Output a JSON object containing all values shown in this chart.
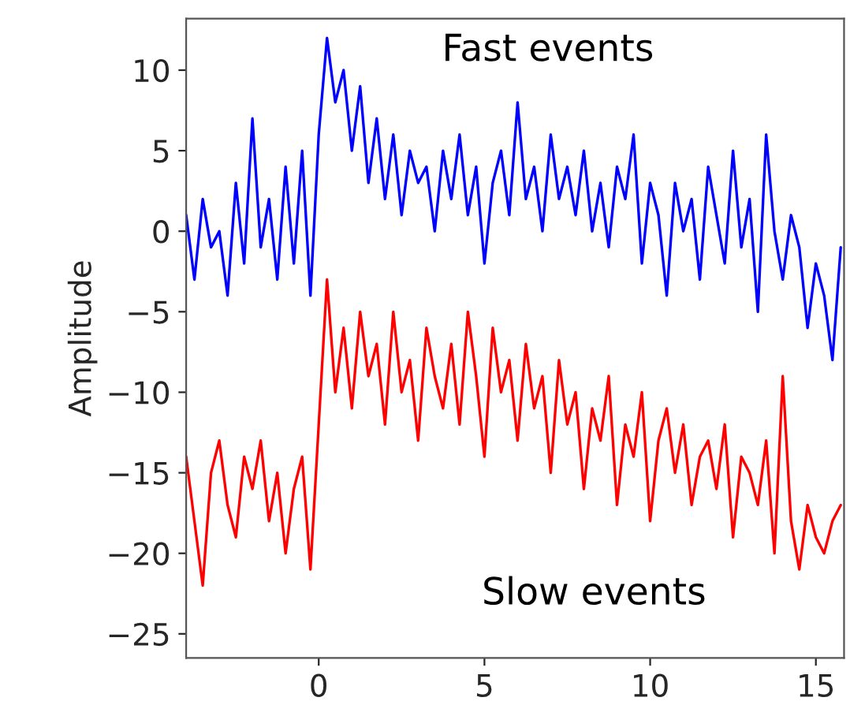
{
  "chart_data": {
    "type": "line",
    "ylabel": "Amplitude",
    "x": [
      -4.0,
      -3.75,
      -3.5,
      -3.25,
      -3.0,
      -2.75,
      -2.5,
      -2.25,
      -2.0,
      -1.75,
      -1.5,
      -1.25,
      -1.0,
      -0.75,
      -0.5,
      -0.25,
      0.0,
      0.25,
      0.5,
      0.75,
      1.0,
      1.25,
      1.5,
      1.75,
      2.0,
      2.25,
      2.5,
      2.75,
      3.0,
      3.25,
      3.5,
      3.75,
      4.0,
      4.25,
      4.5,
      4.75,
      5.0,
      5.25,
      5.5,
      5.75,
      6.0,
      6.25,
      6.5,
      6.75,
      7.0,
      7.25,
      7.5,
      7.75,
      8.0,
      8.25,
      8.5,
      8.75,
      9.0,
      9.25,
      9.5,
      9.75,
      10.0,
      10.25,
      10.5,
      10.75,
      11.0,
      11.25,
      11.5,
      11.75,
      12.0,
      12.25,
      12.5,
      12.75,
      13.0,
      13.25,
      13.5,
      13.75,
      14.0,
      14.25,
      14.5,
      14.75,
      15.0,
      15.25,
      15.5,
      15.75
    ],
    "series": [
      {
        "name": "Fast events",
        "color": "#0000ff",
        "values": [
          1,
          -3,
          2,
          -1,
          0,
          -4,
          3,
          -2,
          7,
          -1,
          2,
          -3,
          4,
          -2,
          5,
          -4,
          6,
          12,
          8,
          10,
          5,
          9,
          3,
          7,
          2,
          6,
          1,
          5,
          3,
          4,
          0,
          5,
          2,
          6,
          1,
          4,
          -2,
          3,
          5,
          1,
          8,
          2,
          4,
          0,
          6,
          2,
          4,
          1,
          5,
          0,
          3,
          -1,
          4,
          2,
          6,
          -2,
          3,
          1,
          -4,
          3,
          0,
          2,
          -3,
          4,
          1,
          -2,
          5,
          -1,
          2,
          -5,
          6,
          0,
          -3,
          1,
          -1,
          -6,
          -2,
          -4,
          -8,
          -1
        ]
      },
      {
        "name": "Slow events",
        "color": "#ff0000",
        "values": [
          -14,
          -18,
          -22,
          -15,
          -13,
          -17,
          -19,
          -14,
          -16,
          -13,
          -18,
          -15,
          -20,
          -16,
          -14,
          -21,
          -12,
          -3,
          -10,
          -6,
          -11,
          -5,
          -9,
          -7,
          -12,
          -5,
          -10,
          -8,
          -13,
          -6,
          -9,
          -11,
          -7,
          -12,
          -5,
          -9,
          -14,
          -6,
          -10,
          -8,
          -13,
          -7,
          -11,
          -9,
          -15,
          -8,
          -12,
          -10,
          -16,
          -11,
          -13,
          -9,
          -17,
          -12,
          -14,
          -10,
          -18,
          -13,
          -11,
          -15,
          -12,
          -17,
          -14,
          -13,
          -16,
          -12,
          -19,
          -14,
          -15,
          -17,
          -13,
          -20,
          -9,
          -18,
          -21,
          -17,
          -19,
          -20,
          -18,
          -17
        ]
      }
    ],
    "xlim": [
      -4.0,
      15.85
    ],
    "ylim": [
      -26.5,
      13.2
    ],
    "xticks": [
      0,
      5,
      10,
      15
    ],
    "yticks": [
      -25,
      -20,
      -15,
      -10,
      -5,
      0,
      5,
      10
    ],
    "grid": false,
    "legend": false,
    "marker": "none",
    "line_style": "solid"
  }
}
